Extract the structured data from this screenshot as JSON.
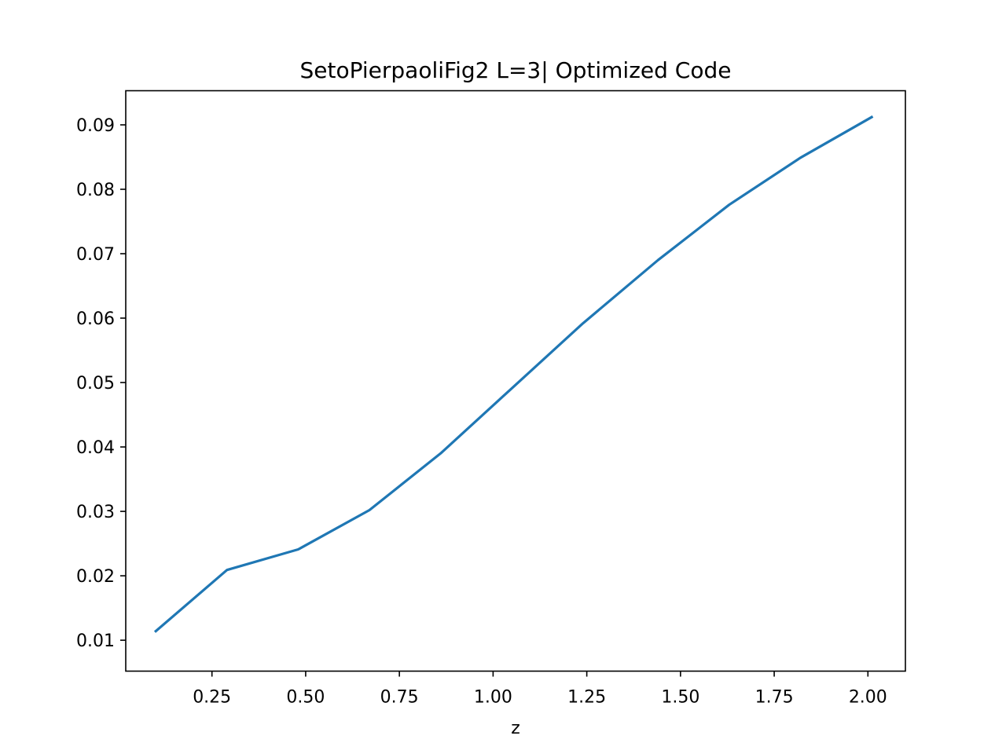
{
  "chart_data": {
    "type": "line",
    "title": "SetoPierpaoliFig2 L=3| Optimized Code",
    "xlabel": "z",
    "ylabel": "",
    "xlim": [
      0.02,
      2.1
    ],
    "ylim": [
      0.0052,
      0.0953
    ],
    "xticks": [
      0.25,
      0.5,
      0.75,
      1.0,
      1.25,
      1.5,
      1.75,
      2.0
    ],
    "xtick_labels": [
      "0.25",
      "0.50",
      "0.75",
      "1.00",
      "1.25",
      "1.50",
      "1.75",
      "2.00"
    ],
    "yticks": [
      0.01,
      0.02,
      0.03,
      0.04,
      0.05,
      0.06,
      0.07,
      0.08,
      0.09
    ],
    "ytick_labels": [
      "0.01",
      "0.02",
      "0.03",
      "0.04",
      "0.05",
      "0.06",
      "0.07",
      "0.08",
      "0.09"
    ],
    "grid": false,
    "series": [
      {
        "color": "#1f77b4",
        "x": [
          0.1,
          0.29,
          0.48,
          0.67,
          0.86,
          1.05,
          1.24,
          1.44,
          1.63,
          1.82,
          2.01
        ],
        "y": [
          0.0114,
          0.0209,
          0.0241,
          0.0302,
          0.039,
          0.0491,
          0.0592,
          0.069,
          0.0776,
          0.0849,
          0.0912
        ]
      }
    ]
  }
}
